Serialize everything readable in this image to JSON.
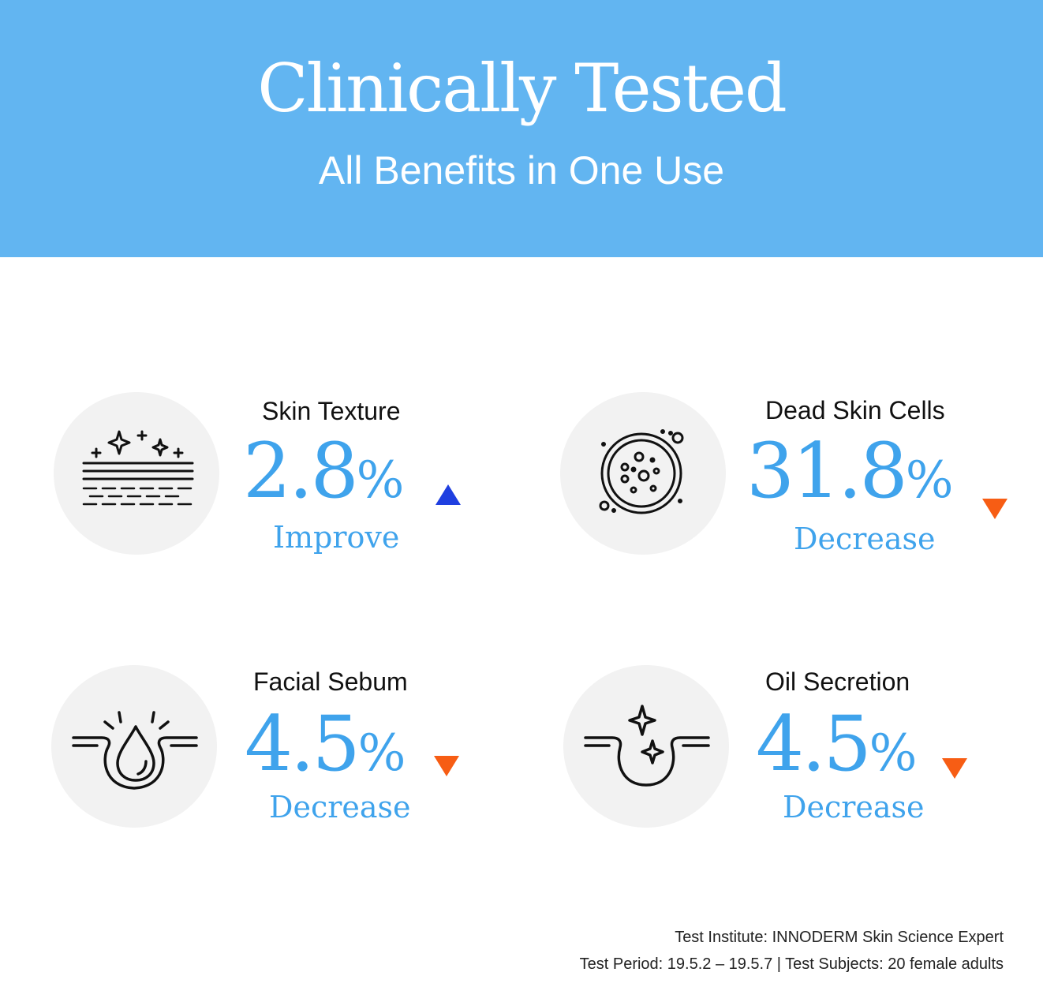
{
  "header": {
    "title": "Clinically Tested",
    "subtitle": "All Benefits in One Use"
  },
  "stats": [
    {
      "label": "Skin Texture",
      "value": "2.8",
      "unit": "%",
      "direction": "Improve",
      "trend": "up",
      "icon": "skin-texture-sparkle-icon",
      "trend_color": "#1f3fe0"
    },
    {
      "label": "Dead Skin Cells",
      "value": "31.8",
      "unit": "%",
      "direction": "Decrease",
      "trend": "down",
      "icon": "dead-skin-cells-icon",
      "trend_color": "#f75d14"
    },
    {
      "label": "Facial Sebum",
      "value": "4.5",
      "unit": "%",
      "direction": "Decrease",
      "trend": "down",
      "icon": "sebum-drop-pore-icon",
      "trend_color": "#f75d14"
    },
    {
      "label": "Oil Secretion",
      "value": "4.5",
      "unit": "%",
      "direction": "Decrease",
      "trend": "down",
      "icon": "oil-pore-sparkle-icon",
      "trend_color": "#f75d14"
    }
  ],
  "footnote": {
    "institute": "Test Institute: INNODERM Skin Science Expert",
    "period": "Test Period: 19.5.2 – 19.5.7 | Test Subjects: 20 female adults"
  },
  "colors": {
    "banner": "#62b5f1",
    "accent": "#3fa3ec",
    "circle": "#f2f2f2"
  }
}
